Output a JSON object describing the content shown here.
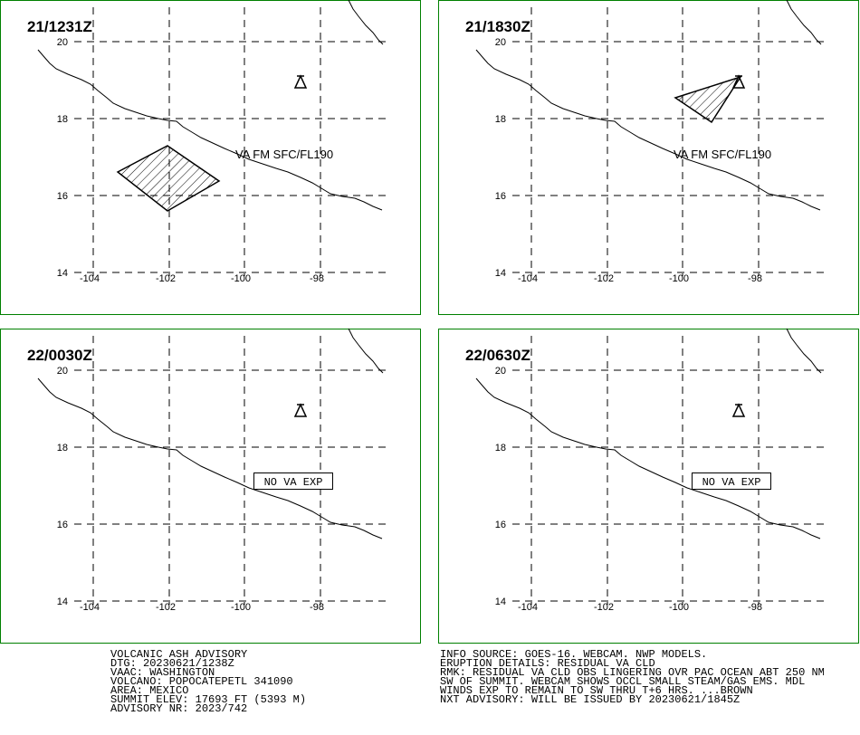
{
  "panels": [
    {
      "time": "21/1231Z",
      "annotation": "VA FM SFC/FL190"
    },
    {
      "time": "21/1830Z",
      "annotation": "VA FM SFC/FL190"
    },
    {
      "time": "22/0030Z",
      "annotation": "NO VA EXP"
    },
    {
      "time": "22/0630Z",
      "annotation": "NO VA EXP"
    }
  ],
  "lat_labels": [
    "20",
    "18",
    "16",
    "14"
  ],
  "lon_labels": [
    "-104",
    "-102",
    "-100",
    "-98"
  ],
  "advisory": {
    "left": [
      "VOLCANIC ASH ADVISORY",
      "DTG: 20230621/1238Z",
      "VAAC: WASHINGTON",
      "VOLCANO: POPOCATEPETL 341090",
      "AREA: MEXICO",
      "SUMMIT ELEV: 17693 FT (5393 M)",
      "ADVISORY NR: 2023/742"
    ],
    "right": [
      "INFO SOURCE: GOES-16. WEBCAM. NWP MODELS.",
      "ERUPTION DETAILS: RESIDUAL VA CLD",
      "RMK: RESIDUAL VA CLD OBS LINGERING OVR PAC OCEAN ABT 250 NM",
      "SW OF SUMMIT. WEBCAM SHOWS OCCL SMALL STEAM/GAS EMS. MDL",
      "WINDS EXP TO REMAIN TO SW THRU T+6 HRS. ...BROWN",
      "NXT ADVISORY: WILL BE ISSUED BY 20230621/1845Z"
    ]
  }
}
